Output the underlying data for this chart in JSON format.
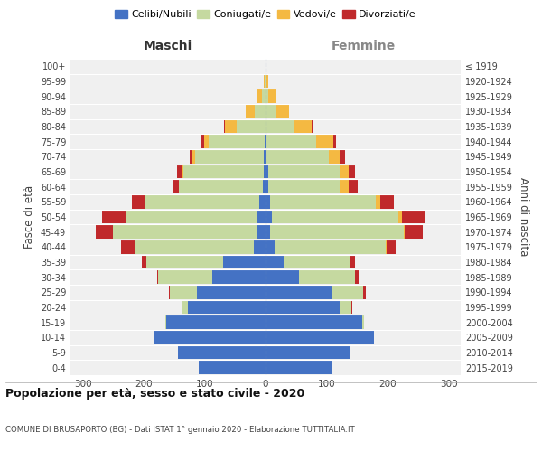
{
  "age_groups": [
    "0-4",
    "5-9",
    "10-14",
    "15-19",
    "20-24",
    "25-29",
    "30-34",
    "35-39",
    "40-44",
    "45-49",
    "50-54",
    "55-59",
    "60-64",
    "65-69",
    "70-74",
    "75-79",
    "80-84",
    "85-89",
    "90-94",
    "95-99",
    "100+"
  ],
  "birth_years": [
    "2015-2019",
    "2010-2014",
    "2005-2009",
    "2000-2004",
    "1995-1999",
    "1990-1994",
    "1985-1989",
    "1980-1984",
    "1975-1979",
    "1970-1974",
    "1965-1969",
    "1960-1964",
    "1955-1959",
    "1950-1954",
    "1945-1949",
    "1940-1944",
    "1935-1939",
    "1930-1934",
    "1925-1929",
    "1920-1924",
    "≤ 1919"
  ],
  "males": {
    "celibe": [
      110,
      143,
      183,
      163,
      128,
      112,
      88,
      70,
      20,
      15,
      15,
      10,
      4,
      3,
      3,
      1,
      0,
      0,
      0,
      0,
      0
    ],
    "coniugato": [
      0,
      0,
      0,
      2,
      10,
      45,
      88,
      125,
      195,
      235,
      215,
      188,
      138,
      132,
      112,
      92,
      48,
      18,
      6,
      1,
      0
    ],
    "vedovo": [
      0,
      0,
      0,
      0,
      0,
      0,
      0,
      0,
      0,
      0,
      0,
      0,
      0,
      2,
      5,
      8,
      18,
      14,
      7,
      2,
      0
    ],
    "divorziato": [
      0,
      0,
      0,
      0,
      0,
      2,
      2,
      8,
      22,
      28,
      38,
      22,
      10,
      8,
      5,
      4,
      2,
      1,
      0,
      0,
      0
    ]
  },
  "females": {
    "nubile": [
      108,
      138,
      178,
      158,
      122,
      108,
      55,
      30,
      15,
      8,
      10,
      8,
      4,
      4,
      2,
      1,
      0,
      0,
      0,
      0,
      0
    ],
    "coniugata": [
      0,
      0,
      0,
      4,
      18,
      52,
      92,
      108,
      182,
      218,
      208,
      172,
      118,
      118,
      102,
      82,
      48,
      16,
      4,
      1,
      0
    ],
    "vedova": [
      0,
      0,
      0,
      0,
      0,
      0,
      0,
      0,
      2,
      2,
      5,
      8,
      15,
      15,
      18,
      28,
      28,
      22,
      12,
      4,
      2
    ],
    "divorziata": [
      0,
      0,
      0,
      0,
      2,
      4,
      6,
      8,
      14,
      30,
      38,
      22,
      14,
      10,
      8,
      4,
      2,
      1,
      0,
      0,
      0
    ]
  },
  "colors": {
    "celibe_nubile": "#4472C4",
    "coniugato_coniugata": "#c5d9a0",
    "vedovo_vedova": "#f4b942",
    "divorziato_divorziata": "#c0292b"
  },
  "title": "Popolazione per età, sesso e stato civile - 2020",
  "subtitle": "COMUNE DI BRUSAPORTO (BG) - Dati ISTAT 1° gennaio 2020 - Elaborazione TUTTITALIA.IT",
  "xlabel_left": "Maschi",
  "xlabel_right": "Femmine",
  "ylabel_left": "Fasce di età",
  "ylabel_right": "Anni di nascita",
  "xlim": 320,
  "bg_color": "#f0f0f0"
}
